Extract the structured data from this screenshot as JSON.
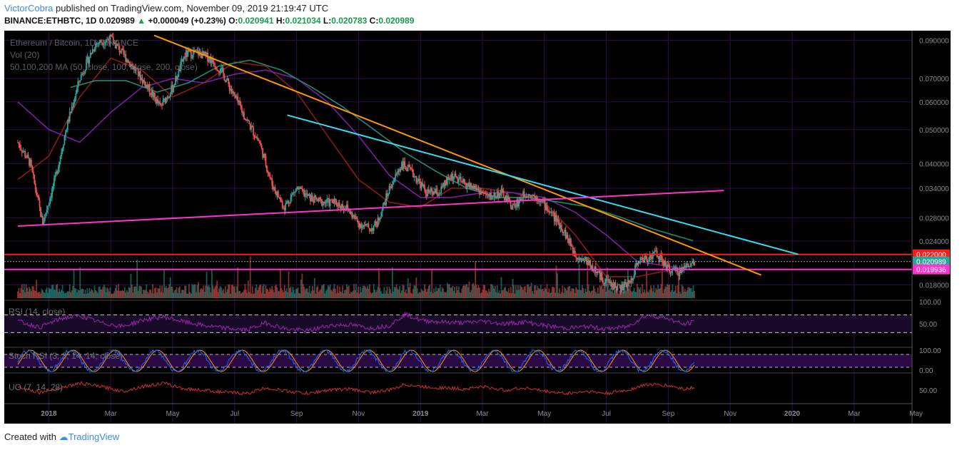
{
  "header": {
    "author": "VictorCobra",
    "published": "published on TradingView.com, November 09, 2019 21:19:47 UTC",
    "symbol": "BINANCE:ETHBTC, 1D",
    "last": "0.020989",
    "change": "+0.000049 (+0.23%)",
    "o_label": "O:",
    "o": "0.020941",
    "h_label": "H:",
    "h": "0.021034",
    "l_label": "L:",
    "l": "0.020783",
    "c_label": "C:",
    "c": "0.020989"
  },
  "legend": {
    "title": "Ethereum / Bitcoin, 1D, BINANCE",
    "vol": "Vol (20)",
    "ma": "50,100,200 MA (50, close, 100, close, 200, close)"
  },
  "footer": {
    "created": "Created with",
    "brand": "TradingView"
  },
  "colors": {
    "background": "#000000",
    "grid": "#2a1040",
    "up": "#26a69a",
    "down": "#ef5350",
    "orange_line": "#ff9800",
    "cyan_line": "#33ddee",
    "magenta_line": "#ff33cc",
    "resistance": "#ff1a1a",
    "ma50": "#8b1a1a",
    "ma100": "#7a1fa2",
    "ma200": "#1f8a70",
    "rsi": "#9c27b0",
    "stoch_k": "#2962ff",
    "stoch_d": "#ff9800",
    "uo": "#d32f2f"
  },
  "chart_data": {
    "type": "line",
    "title": "Ethereum / Bitcoin, 1D, BINANCE",
    "price_scale": "log",
    "x_labels": [
      "2018",
      "Mar",
      "May",
      "Jul",
      "Sep",
      "Nov",
      "2019",
      "Mar",
      "May",
      "Jul",
      "Sep",
      "Nov",
      "2020",
      "Mar",
      "May"
    ],
    "y_ticks": [
      "0.090000",
      "0.070000",
      "0.060000",
      "0.050000",
      "0.040000",
      "0.034000",
      "0.028000",
      "0.024000",
      "0.018000"
    ],
    "price_labels": [
      {
        "value": "0.022000",
        "color": "#ff1a1a"
      },
      {
        "value": "0.020989",
        "color": "#26a69a"
      },
      {
        "value": "0.019936",
        "color": "#ff33cc"
      }
    ],
    "price_path": {
      "x_month_index": [
        0.0,
        0.4,
        0.8,
        1.2,
        1.6,
        2.0,
        2.5,
        3.0,
        3.4,
        3.8,
        4.2,
        4.6,
        5.0,
        5.4,
        5.8,
        6.2,
        6.6,
        7.0,
        7.4,
        7.8,
        8.2,
        8.6,
        9.0,
        9.4,
        9.8,
        10.2,
        10.6,
        11.0,
        11.4,
        11.6,
        12.0,
        12.4,
        12.8,
        13.2,
        13.6,
        14.0,
        14.4,
        14.8,
        15.2,
        15.6,
        16.0,
        16.4,
        16.8,
        17.2,
        17.6,
        18.0,
        18.4,
        18.8,
        19.2,
        19.5,
        19.8,
        20.0,
        20.3,
        20.6,
        21.0,
        21.3,
        21.6,
        21.85
      ],
      "close": [
        0.046,
        0.04,
        0.027,
        0.036,
        0.052,
        0.07,
        0.088,
        0.091,
        0.082,
        0.074,
        0.066,
        0.058,
        0.066,
        0.082,
        0.083,
        0.08,
        0.073,
        0.062,
        0.053,
        0.046,
        0.035,
        0.03,
        0.034,
        0.032,
        0.031,
        0.031,
        0.03,
        0.027,
        0.026,
        0.027,
        0.034,
        0.04,
        0.037,
        0.033,
        0.033,
        0.037,
        0.035,
        0.034,
        0.032,
        0.033,
        0.03,
        0.033,
        0.032,
        0.029,
        0.026,
        0.022,
        0.021,
        0.019,
        0.018,
        0.0176,
        0.0185,
        0.021,
        0.0215,
        0.0222,
        0.02,
        0.0195,
        0.0205,
        0.020989
      ]
    },
    "ma50": {
      "x_month_index": [
        0,
        1,
        2,
        3,
        4,
        5,
        6,
        7,
        8,
        9,
        10,
        11,
        12,
        13,
        14,
        15,
        16,
        17,
        18,
        19,
        20,
        21.85
      ],
      "values": [
        0.036,
        0.042,
        0.062,
        0.08,
        0.074,
        0.062,
        0.068,
        0.078,
        0.076,
        0.064,
        0.048,
        0.036,
        0.031,
        0.03,
        0.034,
        0.034,
        0.033,
        0.031,
        0.025,
        0.019,
        0.019,
        0.0205
      ]
    },
    "ma100": {
      "x_month_index": [
        0,
        1,
        2,
        3,
        4,
        5,
        6,
        7,
        8,
        9,
        10,
        11,
        12,
        13,
        14,
        15,
        16,
        17,
        18,
        19,
        20,
        21.85
      ],
      "values": [
        0.06,
        0.05,
        0.046,
        0.056,
        0.066,
        0.07,
        0.068,
        0.072,
        0.074,
        0.07,
        0.06,
        0.048,
        0.037,
        0.032,
        0.032,
        0.033,
        0.033,
        0.032,
        0.029,
        0.025,
        0.021,
        0.0198
      ]
    },
    "ma200": {
      "x_month_index": [
        1.7,
        2.5,
        3.5,
        4.5,
        5.5,
        6.5,
        7.5,
        8.5,
        9.5,
        10.5,
        11.5,
        12.5,
        13.5,
        14.5,
        15.5,
        16.5,
        17.5,
        18.5,
        19.5,
        20.5,
        21.85
      ],
      "values": [
        0.066,
        0.069,
        0.069,
        0.064,
        0.068,
        0.076,
        0.079,
        0.074,
        0.066,
        0.058,
        0.05,
        0.043,
        0.038,
        0.034,
        0.032,
        0.032,
        0.031,
        0.03,
        0.028,
        0.026,
        0.024
      ]
    },
    "trendlines": [
      {
        "name": "orange-resistance",
        "x_month_index": [
          4.4,
          24.0
        ],
        "values": [
          0.093,
          0.0192
        ],
        "color": "#ff9800"
      },
      {
        "name": "cyan-resistance",
        "x_month_index": [
          8.7,
          25.2
        ],
        "values": [
          0.055,
          0.022
        ],
        "color": "#33ddee"
      },
      {
        "name": "magenta-support",
        "x_month_index": [
          0.0,
          22.8
        ],
        "values": [
          0.0265,
          0.0335
        ],
        "color": "#ff33cc"
      }
    ],
    "horizontal_levels": [
      {
        "value": 0.022,
        "color": "#ff1a1a"
      },
      {
        "value": 0.019936,
        "color": "#ff33cc"
      }
    ],
    "rsi": {
      "label": "RSI (14, close)",
      "y_ticks": [
        "100.00",
        "50.00"
      ],
      "guides": [
        70,
        30
      ],
      "x_month_index": [
        0,
        0.7,
        1.4,
        2.0,
        2.7,
        3.4,
        4.0,
        4.7,
        5.4,
        6.0,
        6.7,
        7.4,
        8.0,
        8.7,
        9.4,
        10.0,
        10.7,
        11.4,
        12.0,
        12.5,
        13.0,
        13.7,
        14.4,
        15.0,
        15.7,
        16.4,
        17.0,
        17.7,
        18.4,
        19.0,
        19.7,
        20.3,
        21.0,
        21.5,
        21.85
      ],
      "values": [
        56,
        42,
        62,
        68,
        52,
        44,
        58,
        66,
        54,
        46,
        40,
        36,
        52,
        38,
        34,
        46,
        48,
        40,
        46,
        72,
        58,
        54,
        52,
        56,
        50,
        54,
        46,
        40,
        44,
        38,
        44,
        70,
        62,
        48,
        55
      ]
    },
    "stoch_rsi": {
      "label": "Stoch RSI (3, 3, 14, 14, close)",
      "y_ticks": [
        "100.00",
        "0.00"
      ]
    },
    "uo": {
      "label": "UO (7, 14, 28)",
      "y_ticks": [
        "50.00"
      ],
      "x_month_index": [
        0,
        0.7,
        1.4,
        2.0,
        2.7,
        3.4,
        4.0,
        4.7,
        5.4,
        6.0,
        6.7,
        7.4,
        8.0,
        8.7,
        9.4,
        10.0,
        10.7,
        11.4,
        12.0,
        12.5,
        13.0,
        13.7,
        14.4,
        15.0,
        15.7,
        16.4,
        17.0,
        17.7,
        18.4,
        19.0,
        19.7,
        20.3,
        21.0,
        21.5,
        21.85
      ],
      "values": [
        56,
        46,
        54,
        62,
        56,
        48,
        56,
        62,
        52,
        50,
        46,
        44,
        54,
        48,
        44,
        50,
        52,
        46,
        50,
        60,
        56,
        54,
        52,
        56,
        50,
        54,
        48,
        44,
        48,
        44,
        50,
        60,
        58,
        52,
        55
      ]
    }
  }
}
